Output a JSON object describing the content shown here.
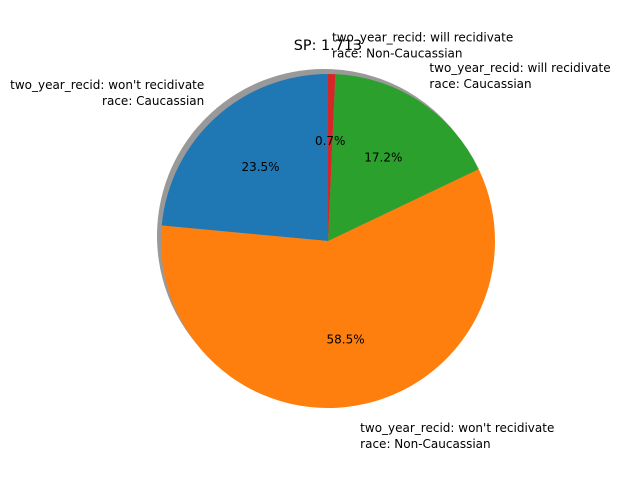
{
  "chart_data": {
    "type": "pie",
    "title": "SP: 1.713",
    "start_angle_deg": 90,
    "shadow": true,
    "slices": [
      {
        "label_lines": [
          "two_year_recid: won't recidivate",
          "race: Caucassian"
        ],
        "value": 23.5,
        "pct_label": "23.5%",
        "color": "#1f77b4"
      },
      {
        "label_lines": [
          "two_year_recid: won't recidivate",
          "race: Non-Caucassian"
        ],
        "value": 58.5,
        "pct_label": "58.5%",
        "color": "#ff7f0e"
      },
      {
        "label_lines": [
          "two_year_recid: will recidivate",
          "race: Caucassian"
        ],
        "value": 17.2,
        "pct_label": "17.2%",
        "color": "#2ca02c"
      },
      {
        "label_lines": [
          "two_year_recid: will recidivate",
          "race: Non-Caucassian"
        ],
        "value": 0.7,
        "pct_label": "0.7%",
        "color": "#d62728"
      }
    ]
  }
}
